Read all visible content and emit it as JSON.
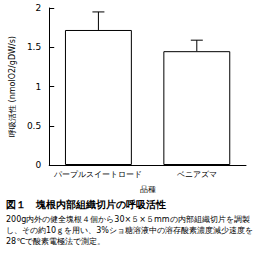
{
  "chart_data": {
    "type": "bar",
    "title": "図１　塊根内部組織切片の呼吸活性",
    "subtitle": "200g内外の健全塊根４個から30×５×５mmの内部組織切片を調製し、その約10ｇを用い、3%ショ糖溶液中の溶存酸素濃度減少速度を28℃で酸素電極法で測定。",
    "x_label": "品種",
    "y_label": "呼吸活性 (nmolO2/gDW/s)",
    "categories": [
      "パープルスイートロード",
      "ベニアズマ"
    ],
    "values": [
      1.72,
      1.45
    ],
    "errors": [
      0.23,
      0.14
    ],
    "color": "#ffffff",
    "ylim": [
      0,
      2
    ],
    "yticks": [
      0,
      0.5,
      1,
      1.5,
      2
    ],
    "grid": false
  }
}
